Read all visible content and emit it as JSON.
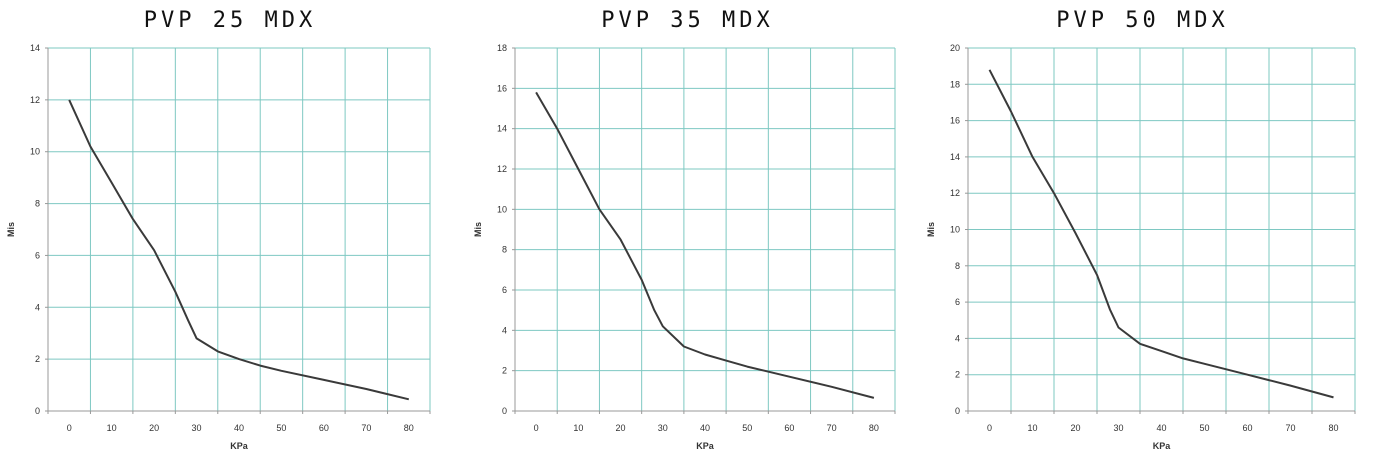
{
  "chart_data": [
    {
      "type": "line",
      "title": "PVP 25 MDX",
      "xlabel": "KPa",
      "ylabel": "Mis",
      "xlim": [
        -5,
        85
      ],
      "ylim": [
        0,
        14
      ],
      "x_ticks": [
        0,
        10,
        20,
        30,
        40,
        50,
        60,
        70,
        80
      ],
      "y_ticks": [
        0,
        2,
        4,
        6,
        8,
        10,
        12,
        14
      ],
      "grid": true,
      "series": [
        {
          "x": [
            0,
            5,
            10,
            15,
            20,
            25,
            28,
            30,
            35,
            40,
            45,
            50,
            60,
            70,
            80
          ],
          "y": [
            12.0,
            10.2,
            8.8,
            7.4,
            6.2,
            4.6,
            3.5,
            2.8,
            2.3,
            2.0,
            1.75,
            1.55,
            1.2,
            0.85,
            0.45
          ]
        }
      ]
    },
    {
      "type": "line",
      "title": "PVP 35 MDX",
      "xlabel": "KPa",
      "ylabel": "Mis",
      "xlim": [
        -5,
        85
      ],
      "ylim": [
        0,
        18
      ],
      "x_ticks": [
        0,
        10,
        20,
        30,
        40,
        50,
        60,
        70,
        80
      ],
      "y_ticks": [
        0,
        2,
        4,
        6,
        8,
        10,
        12,
        14,
        16,
        18
      ],
      "grid": true,
      "series": [
        {
          "x": [
            0,
            5,
            10,
            15,
            20,
            25,
            28,
            30,
            35,
            40,
            45,
            50,
            60,
            70,
            80
          ],
          "y": [
            15.8,
            14.0,
            12.0,
            10.0,
            8.5,
            6.5,
            5.0,
            4.2,
            3.2,
            2.8,
            2.5,
            2.2,
            1.7,
            1.2,
            0.65
          ]
        }
      ]
    },
    {
      "type": "line",
      "title": "PVP 50 MDX",
      "xlabel": "KPa",
      "ylabel": "Mis",
      "xlim": [
        -5,
        85
      ],
      "ylim": [
        0,
        20
      ],
      "x_ticks": [
        0,
        10,
        20,
        30,
        40,
        50,
        60,
        70,
        80
      ],
      "y_ticks": [
        0,
        2,
        4,
        6,
        8,
        10,
        12,
        14,
        16,
        18,
        20
      ],
      "grid": true,
      "series": [
        {
          "x": [
            0,
            5,
            10,
            15,
            20,
            25,
            28,
            30,
            35,
            40,
            45,
            50,
            60,
            70,
            80
          ],
          "y": [
            18.8,
            16.5,
            14.0,
            12.0,
            9.8,
            7.5,
            5.6,
            4.6,
            3.7,
            3.3,
            2.9,
            2.6,
            2.0,
            1.4,
            0.75
          ]
        }
      ]
    }
  ],
  "colors": {
    "grid": "#7ec8c2",
    "line": "#3a3a3a",
    "axis": "#999999"
  }
}
